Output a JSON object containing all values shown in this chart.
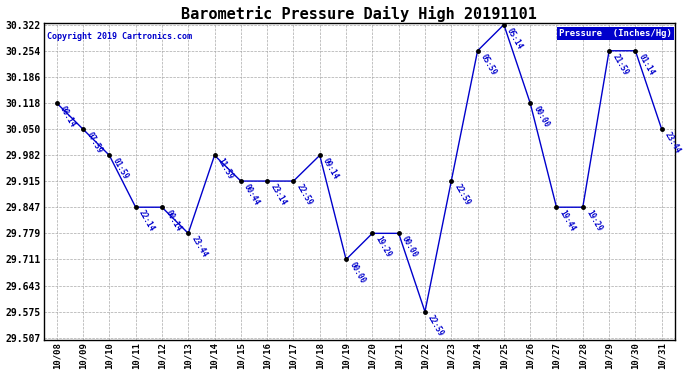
{
  "title": "Barometric Pressure Daily High 20191101",
  "copyright": "Copyright 2019 Cartronics.com",
  "legend_label": "Pressure  (Inches/Hg)",
  "dates": [
    "10/08",
    "10/09",
    "10/10",
    "10/11",
    "10/12",
    "10/13",
    "10/14",
    "10/15",
    "10/16",
    "10/17",
    "10/18",
    "10/19",
    "10/20",
    "10/21",
    "10/22",
    "10/23",
    "10/24",
    "10/25",
    "10/26",
    "10/27",
    "10/28",
    "10/29",
    "10/30",
    "10/31"
  ],
  "values": [
    30.118,
    30.05,
    29.982,
    29.847,
    29.847,
    29.779,
    29.982,
    29.915,
    29.915,
    29.915,
    29.982,
    29.711,
    29.779,
    29.779,
    29.575,
    29.915,
    30.254,
    30.322,
    30.118,
    29.847,
    29.847,
    30.254,
    30.254,
    30.05
  ],
  "time_labels": [
    "08:14",
    "07:59",
    "01:59",
    "22:14",
    "00:14",
    "23:44",
    "11:59",
    "00:44",
    "23:14",
    "22:59",
    "09:14",
    "00:00",
    "19:29",
    "00:00",
    "22:59",
    "22:59",
    "05:59",
    "05:14",
    "00:00",
    "19:44",
    "19:29",
    "21:59",
    "01:14",
    "23:44"
  ],
  "line_color": "#0000cc",
  "marker_color": "#000000",
  "bg_color": "#ffffff",
  "plot_bg_color": "#ffffff",
  "grid_color": "#aaaaaa",
  "label_color": "#0000cc",
  "title_color": "#000000",
  "copyright_color": "#0000cc",
  "yticklabel_color": "#000000",
  "xticklabel_color": "#000000",
  "legend_bg": "#0000cc",
  "legend_text_color": "#ffffff",
  "ylim_min": 29.507,
  "ylim_max": 30.322,
  "yticks": [
    29.507,
    29.575,
    29.643,
    29.711,
    29.779,
    29.847,
    29.915,
    29.982,
    30.05,
    30.118,
    30.186,
    30.254,
    30.322
  ]
}
